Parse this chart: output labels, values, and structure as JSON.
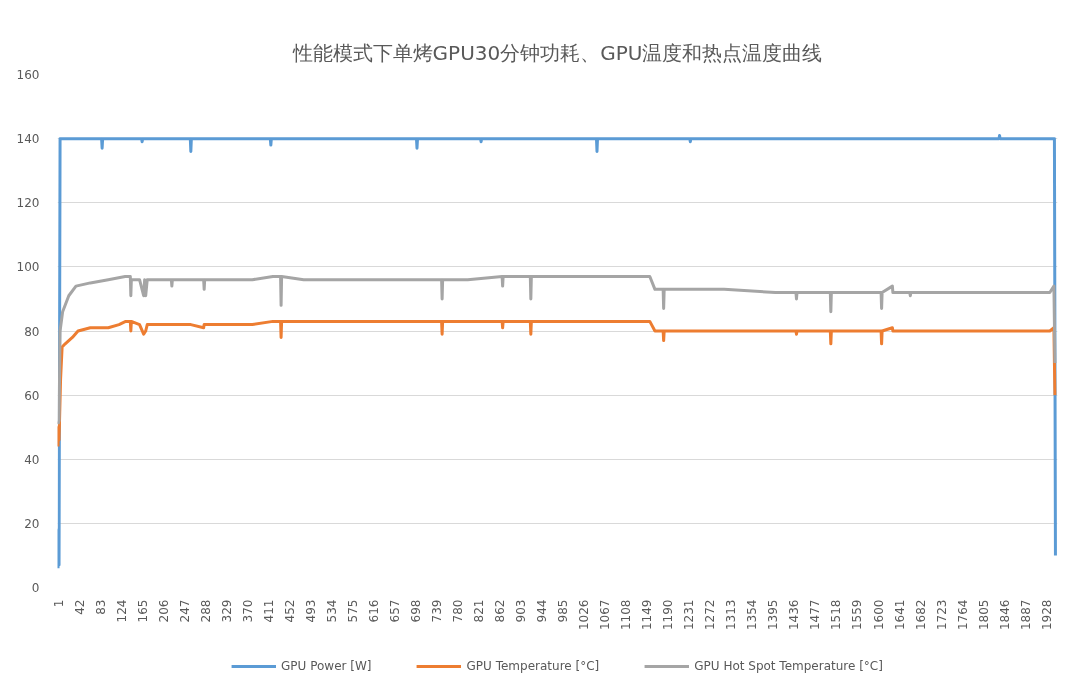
{
  "chart_data": {
    "type": "line",
    "title": "性能模式下单烤GPU30分钟功耗、GPU温度和热点温度曲线",
    "xlim": [
      0,
      1950
    ],
    "xticks": [
      1,
      42,
      83,
      124,
      165,
      206,
      247,
      288,
      329,
      370,
      411,
      452,
      493,
      534,
      575,
      616,
      657,
      698,
      739,
      780,
      821,
      862,
      903,
      944,
      985,
      1026,
      1067,
      1108,
      1149,
      1190,
      1231,
      1272,
      1313,
      1354,
      1395,
      1436,
      1477,
      1518,
      1559,
      1600,
      1641,
      1682,
      1723,
      1764,
      1805,
      1846,
      1887,
      1928
    ],
    "ylim": [
      0,
      160
    ],
    "yticks": [
      0,
      20,
      40,
      60,
      80,
      100,
      120,
      140,
      160
    ],
    "grid": "y",
    "legend": "bottom",
    "series": [
      {
        "name": "GPU Power [W]",
        "color": "#5b9bd5",
        "x": [
          1,
          2,
          3,
          5,
          20,
          60,
          86,
          87,
          88,
          130,
          164,
          165,
          166,
          220,
          259,
          260,
          261,
          330,
          415,
          416,
          417,
          500,
          600,
          700,
          701,
          702,
          780,
          825,
          826,
          827,
          900,
          1000,
          1051,
          1052,
          1053,
          1120,
          1233,
          1234,
          1235,
          1300,
          1400,
          1500,
          1600,
          1700,
          1800,
          1836,
          1837,
          1838,
          1900,
          1944,
          1946
        ],
        "values": [
          6,
          18,
          7,
          140,
          140,
          140,
          140,
          137,
          140,
          140,
          140,
          139,
          140,
          140,
          140,
          136,
          140,
          140,
          140,
          138,
          140,
          140,
          140,
          140,
          137,
          140,
          140,
          140,
          139,
          140,
          140,
          140,
          140,
          136,
          140,
          140,
          140,
          139,
          140,
          140,
          140,
          140,
          140,
          140,
          140,
          140,
          141,
          140,
          140,
          140,
          10
        ]
      },
      {
        "name": "GPU Temperature [°C]",
        "color": "#ed7d31",
        "x": [
          1,
          2,
          3,
          6,
          9,
          15,
          29,
          40,
          64,
          99,
          120,
          133,
          142,
          143,
          144,
          160,
          168,
          172,
          175,
          200,
          223,
          260,
          285,
          286,
          330,
          380,
          420,
          435,
          436,
          437,
          480,
          560,
          650,
          749,
          750,
          751,
          800,
          867,
          868,
          869,
          922,
          923,
          924,
          1000,
          1100,
          1155,
          1165,
          1181,
          1182,
          1183,
          1230,
          1300,
          1400,
          1440,
          1441,
          1442,
          1507,
          1508,
          1509,
          1560,
          1606,
          1607,
          1608,
          1628,
          1629,
          1700,
          1800,
          1900,
          1935,
          1943,
          1944,
          1945
        ],
        "values": [
          44,
          50,
          46,
          65,
          75,
          76,
          78,
          80,
          81,
          81,
          82,
          83,
          83,
          80,
          83,
          82,
          79,
          80,
          82,
          82,
          82,
          82,
          81,
          82,
          82,
          82,
          83,
          83,
          78,
          83,
          83,
          83,
          83,
          83,
          79,
          83,
          83,
          83,
          81,
          83,
          83,
          79,
          83,
          83,
          83,
          83,
          80,
          80,
          77,
          80,
          80,
          80,
          80,
          80,
          79,
          80,
          80,
          76,
          80,
          80,
          80,
          76,
          80,
          81,
          80,
          80,
          80,
          80,
          80,
          81,
          70,
          60
        ]
      },
      {
        "name": "GPU Hot Spot Temperature [°C]",
        "color": "#a5a5a5",
        "x": [
          1,
          3,
          5,
          10,
          22,
          36,
          64,
          99,
          132,
          142,
          143,
          144,
          160,
          168,
          170,
          172,
          175,
          200,
          222,
          223,
          224,
          285,
          286,
          287,
          330,
          380,
          420,
          435,
          436,
          437,
          480,
          560,
          650,
          749,
          750,
          751,
          800,
          867,
          868,
          869,
          922,
          923,
          924,
          1000,
          1100,
          1155,
          1165,
          1181,
          1182,
          1183,
          1230,
          1300,
          1400,
          1440,
          1441,
          1442,
          1507,
          1508,
          1509,
          1560,
          1606,
          1607,
          1608,
          1628,
          1629,
          1662,
          1663,
          1664,
          1700,
          1800,
          1900,
          1935,
          1943,
          1945
        ],
        "values": [
          51,
          52,
          80,
          86,
          91,
          94,
          95,
          96,
          97,
          97,
          91,
          96,
          96,
          91,
          96,
          91,
          96,
          96,
          96,
          94,
          96,
          96,
          93,
          96,
          96,
          96,
          97,
          97,
          88,
          97,
          96,
          96,
          96,
          96,
          90,
          96,
          96,
          97,
          94,
          97,
          97,
          90,
          97,
          97,
          97,
          97,
          93,
          93,
          87,
          93,
          93,
          93,
          92,
          92,
          90,
          92,
          92,
          86,
          92,
          92,
          92,
          87,
          92,
          94,
          92,
          92,
          91,
          92,
          92,
          92,
          92,
          92,
          94,
          70
        ]
      }
    ]
  }
}
